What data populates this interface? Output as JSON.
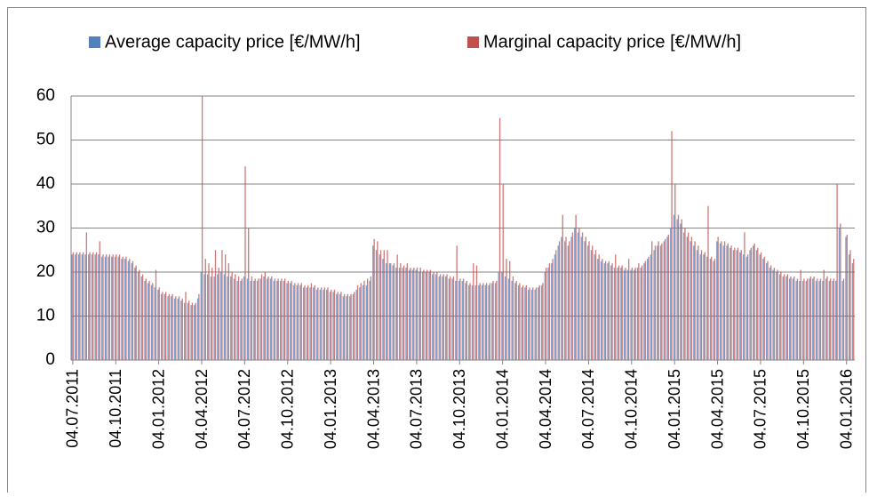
{
  "chart_data": {
    "type": "bar",
    "categories": [
      "04.07.2011",
      null,
      null,
      null,
      null,
      null,
      null,
      null,
      null,
      null,
      null,
      null,
      null,
      "04.10.2011",
      null,
      null,
      null,
      null,
      null,
      null,
      null,
      null,
      null,
      null,
      null,
      null,
      "04.01.2012",
      null,
      null,
      null,
      null,
      null,
      null,
      null,
      null,
      null,
      null,
      null,
      null,
      "04.04.2012",
      null,
      null,
      null,
      null,
      null,
      null,
      null,
      null,
      null,
      null,
      null,
      null,
      "04.07.2012",
      null,
      null,
      null,
      null,
      null,
      null,
      null,
      null,
      null,
      null,
      null,
      null,
      "04.10.2012",
      null,
      null,
      null,
      null,
      null,
      null,
      null,
      null,
      null,
      null,
      null,
      null,
      "04.01.2013",
      null,
      null,
      null,
      null,
      null,
      null,
      null,
      null,
      null,
      null,
      null,
      null,
      "04.04.2013",
      null,
      null,
      null,
      null,
      null,
      null,
      null,
      null,
      null,
      null,
      null,
      null,
      "04.07.2013",
      null,
      null,
      null,
      null,
      null,
      null,
      null,
      null,
      null,
      null,
      null,
      null,
      "04.10.2013",
      null,
      null,
      null,
      null,
      null,
      null,
      null,
      null,
      null,
      null,
      null,
      null,
      "04.01.2014",
      null,
      null,
      null,
      null,
      null,
      null,
      null,
      null,
      null,
      null,
      null,
      null,
      "04.04.2014",
      null,
      null,
      null,
      null,
      null,
      null,
      null,
      null,
      null,
      null,
      null,
      null,
      "04.07.2014",
      null,
      null,
      null,
      null,
      null,
      null,
      null,
      null,
      null,
      null,
      null,
      null,
      "04.10.2014",
      null,
      null,
      null,
      null,
      null,
      null,
      null,
      null,
      null,
      null,
      null,
      null,
      "04.01.2015",
      null,
      null,
      null,
      null,
      null,
      null,
      null,
      null,
      null,
      null,
      null,
      null,
      "04.04.2015",
      null,
      null,
      null,
      null,
      null,
      null,
      null,
      null,
      null,
      null,
      null,
      null,
      "04.07.2015",
      null,
      null,
      null,
      null,
      null,
      null,
      null,
      null,
      null,
      null,
      null,
      null,
      "04.10.2015",
      null,
      null,
      null,
      null,
      null,
      null,
      null,
      null,
      null,
      null,
      null,
      null,
      "04.01.2016",
      null,
      null
    ],
    "series": [
      {
        "name": "Average capacity price [€/MW/h]",
        "color": "#4f81bd",
        "values": [
          24,
          24,
          24,
          24,
          24,
          24,
          24,
          24,
          24,
          23.5,
          23.5,
          23.5,
          23.5,
          23.5,
          23.5,
          23,
          23,
          22.5,
          22,
          21,
          20,
          19,
          18,
          17.5,
          17,
          16.5,
          16,
          15,
          15,
          14.5,
          14.5,
          14,
          14,
          13.5,
          13,
          13,
          12.5,
          12.5,
          14,
          20,
          19.5,
          19.5,
          19,
          19,
          19.5,
          20,
          19.5,
          19,
          19,
          18.5,
          18,
          18,
          19,
          18.5,
          18,
          18,
          18,
          18.5,
          19,
          18.5,
          18.5,
          18,
          18,
          18,
          18,
          17.5,
          17.5,
          17,
          17,
          17,
          16.5,
          16.5,
          16.5,
          16.5,
          16,
          16,
          16,
          16,
          15.5,
          15.5,
          15,
          15,
          14.5,
          14.5,
          14.5,
          15,
          16,
          16.5,
          17,
          17,
          18,
          26,
          25,
          24,
          23,
          22,
          22,
          21.5,
          21,
          21,
          21,
          21,
          20.5,
          20.5,
          20.5,
          20,
          20,
          20,
          20,
          19.5,
          19.5,
          19,
          19,
          19,
          18.5,
          18.5,
          18,
          18,
          18,
          17.5,
          17,
          17,
          17,
          17,
          17,
          17,
          17,
          17.5,
          17.5,
          20,
          20,
          19,
          18.5,
          18,
          17.5,
          17,
          16.5,
          16.5,
          16,
          16,
          16,
          16.5,
          17,
          20,
          21,
          22,
          24,
          26,
          28,
          27,
          26,
          28,
          30,
          29,
          28,
          27,
          26,
          25,
          24,
          23,
          22.5,
          22,
          22,
          21.5,
          21,
          21,
          21,
          20.5,
          20.5,
          20.5,
          20.5,
          21,
          21,
          22,
          23,
          24,
          25,
          26,
          26,
          27,
          28,
          30,
          33,
          32,
          31,
          29,
          28,
          27,
          26,
          25,
          24,
          24,
          23.5,
          23,
          22.5,
          27,
          26.5,
          26,
          26,
          25.5,
          25,
          25,
          24.5,
          24,
          23.5,
          25,
          26,
          25,
          24,
          23,
          22,
          21,
          20.5,
          20,
          19.5,
          19,
          19,
          18.5,
          18.5,
          18,
          18,
          18,
          18,
          18.5,
          18.5,
          18,
          18,
          18,
          18.5,
          18,
          18,
          18,
          30,
          18,
          28,
          24,
          22
        ]
      },
      {
        "name": "Marginal capacity price [€/MW/h]",
        "color": "#c0504d",
        "values": [
          24.5,
          24.5,
          24.5,
          24.5,
          29,
          24.5,
          24.5,
          24.5,
          27,
          24,
          24,
          24,
          24,
          24,
          24,
          23.5,
          23.5,
          23,
          22.5,
          21.5,
          20.5,
          19.5,
          18.5,
          18,
          17.5,
          20.5,
          16.5,
          15.5,
          15.5,
          15,
          15,
          14.5,
          14.5,
          14,
          15.5,
          13.5,
          13,
          13,
          15,
          60,
          23,
          22,
          21,
          25,
          21,
          25,
          24,
          22,
          20,
          19.5,
          19,
          18.5,
          44,
          30,
          19,
          18.5,
          18.5,
          19.5,
          20,
          19,
          19,
          18.5,
          18.5,
          18.5,
          18.5,
          18,
          18,
          17.5,
          17.5,
          17.5,
          17,
          17,
          17.5,
          17,
          16.5,
          16.5,
          16.5,
          16.5,
          16,
          16,
          15.5,
          15.5,
          15,
          15,
          15,
          15.5,
          17,
          17.5,
          18,
          18.5,
          19,
          27.5,
          27,
          25,
          25,
          25,
          22,
          22,
          24,
          22,
          21.5,
          22,
          21,
          21,
          21,
          21,
          20.5,
          20.5,
          20.5,
          20,
          20,
          19.5,
          19.5,
          19.5,
          19,
          19,
          26,
          18.5,
          18.5,
          18,
          17.5,
          22,
          21.5,
          17.5,
          17.5,
          17.5,
          17.5,
          18,
          18,
          55,
          40,
          23,
          22.5,
          19,
          18,
          17.5,
          17,
          17,
          16.5,
          16.5,
          16.5,
          17,
          17.5,
          21,
          22,
          23,
          25,
          27,
          33,
          28,
          27,
          29,
          33,
          30,
          29,
          28,
          27,
          26,
          25,
          24,
          23,
          22.5,
          22.5,
          22,
          24,
          21.5,
          21.5,
          21,
          23,
          21,
          21,
          22,
          21.5,
          22.5,
          23.5,
          27,
          26,
          27,
          26.5,
          27.5,
          28.5,
          52,
          40,
          33,
          32,
          30,
          29,
          28,
          27,
          26,
          25,
          24.5,
          35,
          23.5,
          23,
          28,
          27,
          27,
          26.5,
          26,
          25.5,
          25.5,
          25,
          29,
          24,
          25.5,
          26.5,
          25.5,
          24.5,
          23.5,
          22.5,
          21.5,
          21,
          20.5,
          20,
          19.5,
          19.5,
          19,
          19,
          18.5,
          20.5,
          18.5,
          18.5,
          19,
          19,
          18.5,
          18.5,
          20.5,
          19,
          18.5,
          18.5,
          40,
          31,
          18.5,
          28.5,
          25,
          23
        ]
      }
    ],
    "ylim": [
      0,
      60
    ],
    "yticks": [
      0,
      10,
      20,
      30,
      40,
      50,
      60
    ],
    "grid": true,
    "legend": "top"
  }
}
